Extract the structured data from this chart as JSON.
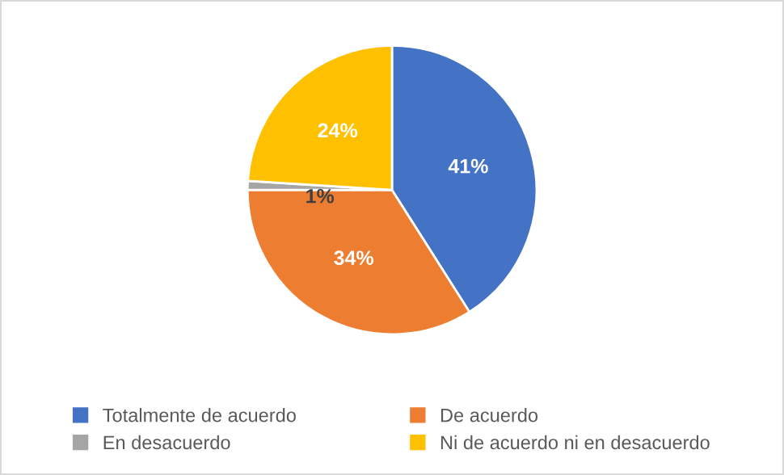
{
  "chart_data": {
    "type": "pie",
    "categories": [
      "Totalmente de acuerdo",
      "De acuerdo",
      "En desacuerdo",
      "Ni de acuerdo ni en desacuerdo"
    ],
    "values": [
      41,
      34,
      1,
      24
    ],
    "colors": [
      "#4472c4",
      "#ed7d31",
      "#a5a5a5",
      "#ffc000"
    ],
    "value_labels": [
      "41%",
      "34%",
      "1%",
      "24%"
    ],
    "legend": "bottom"
  }
}
